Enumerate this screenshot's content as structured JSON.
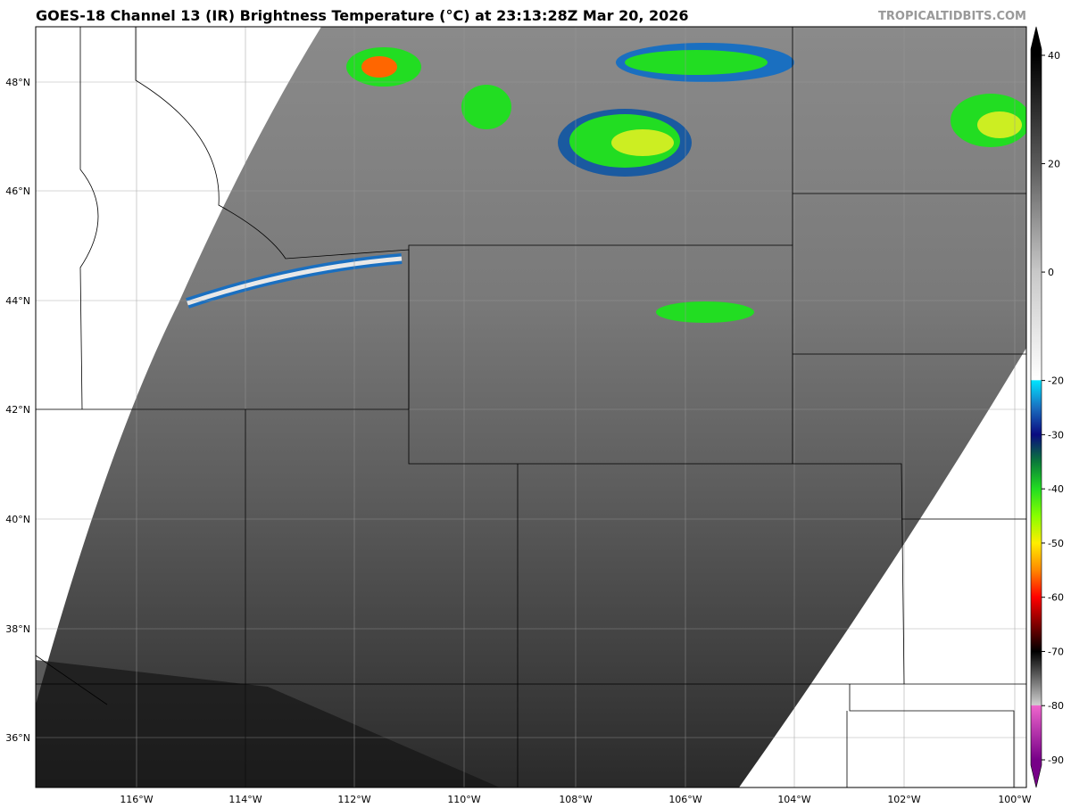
{
  "title": "GOES-18 Channel 13 (IR) Brightness Temperature (°C) at 23:13:28Z Mar 20, 2026",
  "brand": "TROPICALTIDBITS.COM",
  "map": {
    "lon_labels": [
      "116°W",
      "114°W",
      "112°W",
      "110°W",
      "108°W",
      "106°W",
      "104°W",
      "102°W",
      "100°W"
    ],
    "lat_labels": [
      "48°N",
      "46°N",
      "44°N",
      "42°N",
      "40°N",
      "38°N",
      "36°N"
    ],
    "grid": true
  },
  "colorbar": {
    "min": -90,
    "max": 40,
    "ticks": [
      "40",
      "20",
      "0",
      "-20",
      "-30",
      "-40",
      "-50",
      "-60",
      "-70",
      "-80",
      "-90"
    ],
    "tick_values": [
      40,
      20,
      0,
      -20,
      -30,
      -40,
      -50,
      -60,
      -70,
      -80,
      -90
    ],
    "stops": [
      {
        "v": 40,
        "c": "#000000"
      },
      {
        "v": 20,
        "c": "#5a5a5a"
      },
      {
        "v": 0,
        "c": "#c8c8c8"
      },
      {
        "v": -19.9,
        "c": "#ffffff"
      },
      {
        "v": -20,
        "c": "#00e5ff"
      },
      {
        "v": -25,
        "c": "#1a6fc0"
      },
      {
        "v": -30,
        "c": "#0a0a80"
      },
      {
        "v": -35,
        "c": "#0a7a3a"
      },
      {
        "v": -40,
        "c": "#22dd22"
      },
      {
        "v": -45,
        "c": "#88ff00"
      },
      {
        "v": -50,
        "c": "#ffee00"
      },
      {
        "v": -55,
        "c": "#ff8800"
      },
      {
        "v": -60,
        "c": "#ff0000"
      },
      {
        "v": -65,
        "c": "#800000"
      },
      {
        "v": -70,
        "c": "#000000"
      },
      {
        "v": -79.9,
        "c": "#d0d0d0"
      },
      {
        "v": -80,
        "c": "#ee66cc"
      },
      {
        "v": -90,
        "c": "#770088"
      }
    ]
  }
}
